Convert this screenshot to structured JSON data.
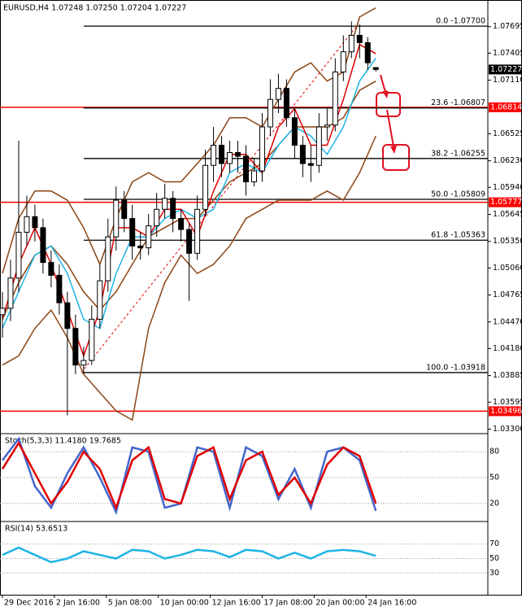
{
  "chart_data": [
    {
      "type": "candlestick",
      "title": "EURUSD,H4 1.07248 1.07250 1.07204 1.07227",
      "x": [
        0,
        1,
        2,
        3,
        4,
        5,
        6,
        7,
        8,
        9,
        10,
        11,
        12,
        13,
        14,
        15,
        16,
        17,
        18,
        19,
        20,
        21,
        22,
        23,
        24,
        25,
        26,
        27,
        28,
        29,
        30,
        31,
        32,
        33,
        34,
        35,
        36,
        37,
        38,
        39,
        40,
        41,
        42,
        43,
        44,
        45,
        46
      ],
      "open": [
        1.0455,
        1.0462,
        1.0495,
        1.0545,
        1.0562,
        1.055,
        1.0512,
        1.0498,
        1.0468,
        1.044,
        1.04,
        1.0405,
        1.045,
        1.0492,
        1.054,
        1.058,
        1.056,
        1.053,
        1.0528,
        1.0552,
        1.057,
        1.0582,
        1.056,
        1.0548,
        1.0522,
        1.057,
        1.0618,
        1.064,
        1.062,
        1.0632,
        1.0628,
        1.06,
        1.0612,
        1.066,
        1.069,
        1.0702,
        1.067,
        1.064,
        1.062,
        1.0618,
        1.066,
        1.0662,
        1.072,
        1.0742,
        1.076,
        1.0752,
        1.07248
      ],
      "high": [
        1.048,
        1.0515,
        1.0645,
        1.0585,
        1.0575,
        1.056,
        1.0525,
        1.051,
        1.048,
        1.0455,
        1.042,
        1.0465,
        1.051,
        1.056,
        1.0595,
        1.059,
        1.0575,
        1.0545,
        1.0565,
        1.0588,
        1.0598,
        1.059,
        1.057,
        1.0555,
        1.0585,
        1.0635,
        1.066,
        1.065,
        1.0645,
        1.0645,
        1.064,
        1.0625,
        1.0675,
        1.0712,
        1.0718,
        1.0712,
        1.068,
        1.065,
        1.064,
        1.0675,
        1.068,
        1.0735,
        1.076,
        1.0775,
        1.0772,
        1.0758,
        1.0725
      ],
      "low": [
        1.043,
        1.0448,
        1.048,
        1.053,
        1.0535,
        1.05,
        1.0485,
        1.0455,
        1.0345,
        1.039,
        1.039,
        1.04,
        1.044,
        1.048,
        1.0525,
        1.0545,
        1.0515,
        1.0515,
        1.052,
        1.054,
        1.056,
        1.0545,
        1.0535,
        1.047,
        1.0515,
        1.0562,
        1.06,
        1.0605,
        1.061,
        1.061,
        1.0585,
        1.0595,
        1.06,
        1.065,
        1.0675,
        1.066,
        1.0625,
        1.0605,
        1.06,
        1.061,
        1.0645,
        1.0655,
        1.071,
        1.0735,
        1.0735,
        1.0722,
        1.07204
      ],
      "close": [
        1.0462,
        1.0495,
        1.0545,
        1.0562,
        1.055,
        1.0512,
        1.0498,
        1.0468,
        1.044,
        1.04,
        1.0405,
        1.045,
        1.0492,
        1.054,
        1.058,
        1.056,
        1.053,
        1.0528,
        1.0552,
        1.057,
        1.0582,
        1.056,
        1.0548,
        1.0522,
        1.057,
        1.0618,
        1.064,
        1.062,
        1.0632,
        1.0628,
        1.06,
        1.0612,
        1.066,
        1.069,
        1.0702,
        1.067,
        1.064,
        1.062,
        1.0618,
        1.066,
        1.0662,
        1.072,
        1.0742,
        1.076,
        1.0752,
        1.073,
        1.07227
      ],
      "up_color": "#ffffff",
      "down_color": "#000000",
      "wick_color": "#000000",
      "overlay_x": [
        0,
        2,
        4,
        6,
        8,
        10,
        12,
        14,
        16,
        18,
        20,
        22,
        24,
        26,
        28,
        30,
        32,
        34,
        36,
        38,
        40,
        42,
        44,
        46
      ],
      "overlays": [
        {
          "color": "#8b4513",
          "values": [
            1.05,
            1.056,
            1.059,
            1.059,
            1.058,
            1.055,
            1.051,
            1.056,
            1.06,
            1.061,
            1.06,
            1.06,
            1.062,
            1.064,
            1.067,
            1.067,
            1.066,
            1.069,
            1.072,
            1.073,
            1.071,
            1.072,
            1.078,
            1.079
          ]
        },
        {
          "color": "#8b4513",
          "values": [
            1.045,
            1.049,
            1.052,
            1.053,
            1.051,
            1.048,
            1.046,
            1.048,
            1.051,
            1.054,
            1.055,
            1.056,
            1.056,
            1.058,
            1.06,
            1.061,
            1.062,
            1.064,
            1.066,
            1.066,
            1.066,
            1.067,
            1.07,
            1.071
          ]
        },
        {
          "color": "#8b4513",
          "values": [
            1.04,
            1.041,
            1.044,
            1.046,
            1.043,
            1.039,
            1.037,
            1.035,
            1.034,
            1.044,
            1.049,
            1.052,
            1.05,
            1.051,
            1.053,
            1.056,
            1.057,
            1.058,
            1.058,
            1.058,
            1.059,
            1.058,
            1.061,
            1.065
          ]
        },
        {
          "color": "#1eb4e6",
          "values": [
            1.044,
            1.048,
            1.052,
            1.053,
            1.05,
            1.045,
            1.044,
            1.05,
            1.054,
            1.054,
            1.056,
            1.057,
            1.056,
            1.057,
            1.061,
            1.062,
            1.061,
            1.064,
            1.066,
            1.065,
            1.063,
            1.066,
            1.071,
            1.0735
          ]
        },
        {
          "color": "#e00000",
          "values": [
            1.045,
            1.051,
            1.055,
            1.051,
            1.046,
            1.041,
            1.046,
            1.055,
            1.055,
            1.054,
            1.057,
            1.057,
            1.054,
            1.059,
            1.063,
            1.063,
            1.061,
            1.066,
            1.068,
            1.064,
            1.064,
            1.069,
            1.075,
            1.074
          ]
        }
      ],
      "xlim": [
        -0.3,
        59.8
      ],
      "xticks": [
        {
          "value": 0,
          "label": "29 Dec 2016"
        },
        {
          "value": 6.4,
          "label": "2 Jan 16:00"
        },
        {
          "value": 12.8,
          "label": "5 Jan 08:00"
        },
        {
          "value": 19.2,
          "label": "10 Jan 00:00"
        },
        {
          "value": 25.6,
          "label": "12 Jan 16:00"
        },
        {
          "value": 32,
          "label": "17 Jan 08:00"
        },
        {
          "value": 38.4,
          "label": "20 Jan 00:00"
        },
        {
          "value": 44.8,
          "label": "24 Jan 16:00"
        }
      ],
      "ylim": [
        1.0326,
        1.0795
      ],
      "yticks": [
        1.07695,
        1.07405,
        {
          "value": 1.0711,
          "label": "1.07110"
        },
        1.06525,
        {
          "value": 1.0623,
          "label": "1.06230"
        },
        {
          "value": 1.0594,
          "label": "1.05940"
        },
        1.05645,
        {
          "value": 1.0535,
          "label": "1.05350"
        },
        {
          "value": 1.0506,
          "label": "1.05060"
        },
        1.04765,
        {
          "value": 1.0447,
          "label": "1.04470"
        },
        {
          "value": 1.0418,
          "label": "1.04180"
        },
        1.03885,
        1.03595,
        {
          "value": 1.033,
          "label": "1.03300"
        }
      ],
      "fib_levels": [
        {
          "value": 1.077,
          "label": "0.0 -1.07700"
        },
        {
          "value": 1.06807,
          "label": "23.6 -1.06807"
        },
        {
          "value": 1.06255,
          "label": "38.2 -1.06255"
        },
        {
          "value": 1.05809,
          "label": "50.0 -1.05809"
        },
        {
          "value": 1.05363,
          "label": "61.8 -1.05363"
        },
        {
          "value": 1.03918,
          "label": "100.0 -1.03918"
        }
      ],
      "price_levels": [
        1.06814,
        1.05777,
        1.03496
      ],
      "level_color": "#ff0000",
      "current_price": 1.07227
    },
    {
      "type": "line",
      "title": "Stoch(5,3,3) 11.4180 19.7685",
      "x": [
        0,
        2,
        4,
        6,
        8,
        10,
        12,
        14,
        16,
        18,
        20,
        22,
        24,
        26,
        28,
        30,
        32,
        34,
        36,
        38,
        40,
        42,
        44,
        46
      ],
      "series": [
        {
          "color": "#4466cc",
          "values": [
            70,
            95,
            40,
            15,
            55,
            85,
            50,
            10,
            85,
            80,
            15,
            20,
            85,
            80,
            15,
            85,
            75,
            25,
            60,
            15,
            80,
            85,
            70,
            11.4
          ]
        },
        {
          "color": "#e00000",
          "values": [
            60,
            90,
            55,
            20,
            45,
            80,
            60,
            15,
            70,
            85,
            25,
            20,
            75,
            85,
            25,
            70,
            80,
            30,
            50,
            20,
            65,
            85,
            75,
            19.8
          ]
        }
      ],
      "ylim": [
        0,
        100
      ],
      "yticks": [
        20,
        50,
        80
      ]
    },
    {
      "type": "line",
      "title": "RSI(14) 53.6513",
      "x": [
        0,
        2,
        4,
        6,
        8,
        10,
        12,
        14,
        16,
        18,
        20,
        22,
        24,
        26,
        28,
        30,
        32,
        34,
        36,
        38,
        40,
        42,
        44,
        46
      ],
      "series": [
        {
          "color": "#1eb4e6",
          "values": [
            55,
            65,
            55,
            45,
            50,
            60,
            55,
            50,
            62,
            60,
            50,
            55,
            62,
            60,
            52,
            62,
            60,
            50,
            58,
            50,
            60,
            62,
            60,
            53.7
          ]
        }
      ],
      "ylim": [
        0,
        100
      ],
      "yticks": [
        30,
        50,
        70
      ]
    }
  ]
}
